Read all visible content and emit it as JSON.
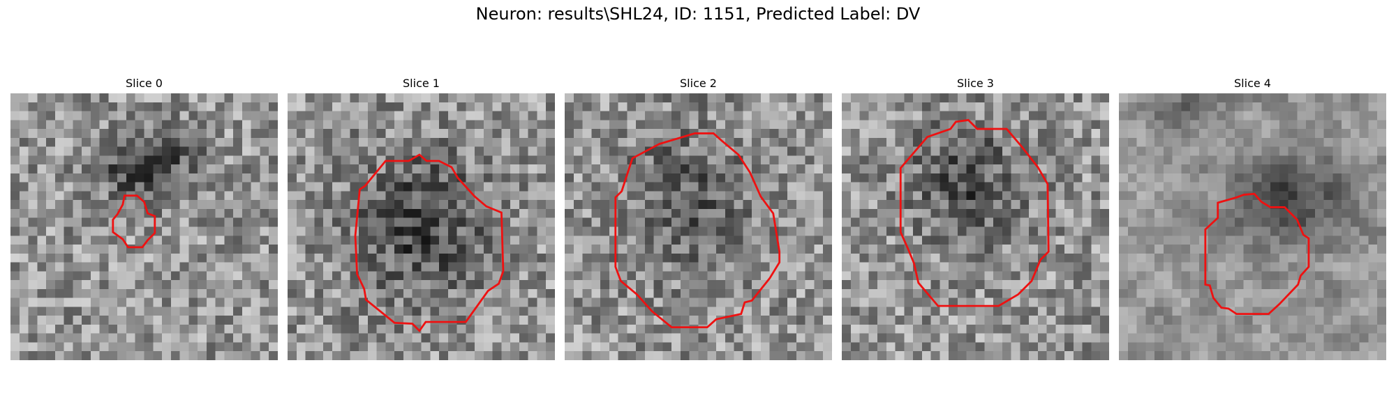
{
  "figure": {
    "title": "Neuron: results\\SHL24, ID: 1151, Predicted Label: DV"
  },
  "colors": {
    "background": "#ffffff",
    "contour": "#ee1111",
    "colormap": "grayscale"
  },
  "slices": [
    {
      "title": "Slice 0"
    },
    {
      "title": "Slice 1"
    },
    {
      "title": "Slice 2"
    },
    {
      "title": "Slice 3"
    },
    {
      "title": "Slice 4"
    }
  ]
}
